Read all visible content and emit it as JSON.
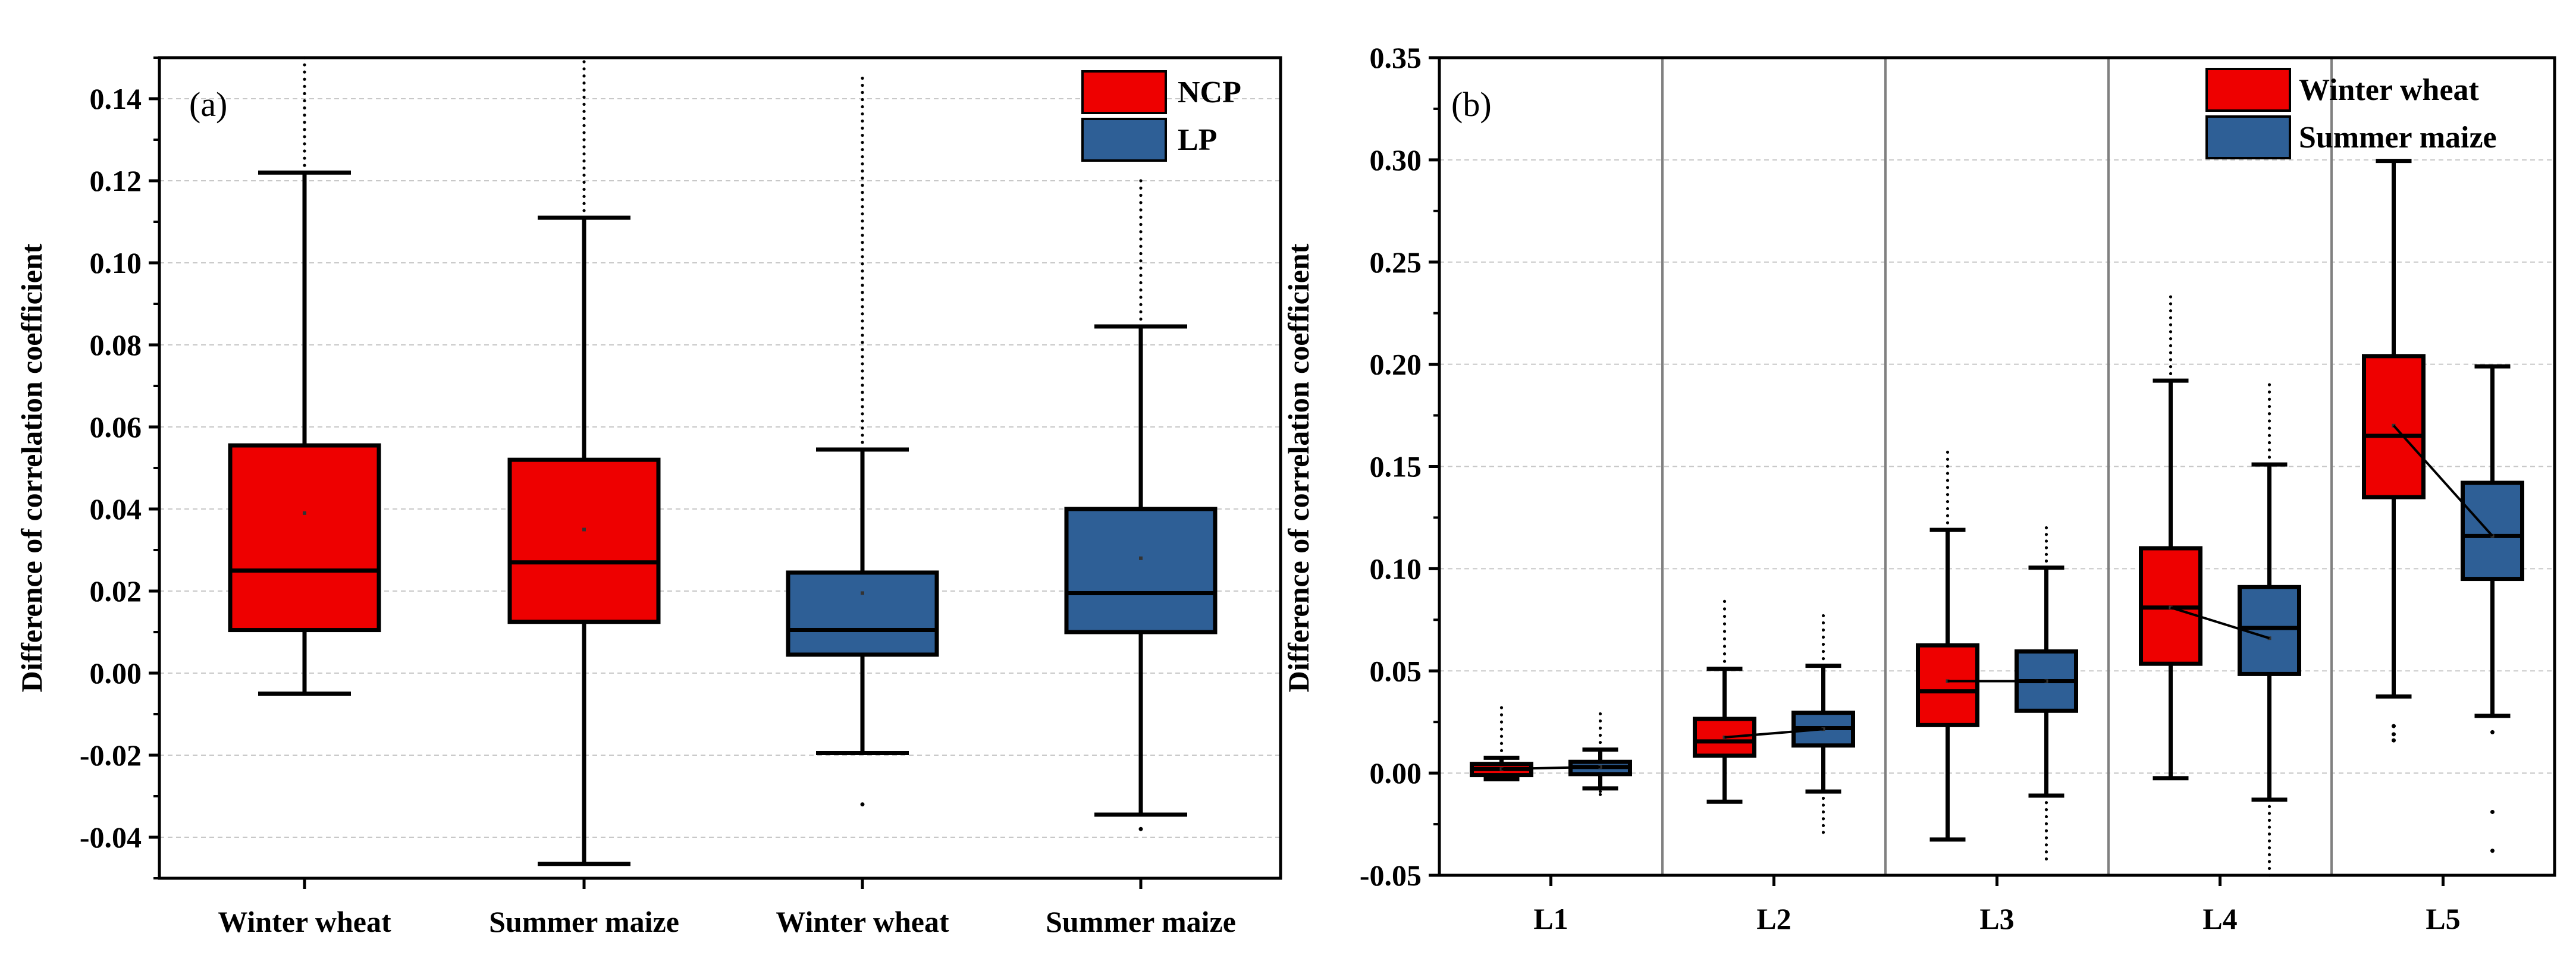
{
  "colors": {
    "red": "#ee0000",
    "blue": "#2e5f96",
    "grid": "#c8c8c8",
    "sep": "#808080"
  },
  "chart_data": [
    {
      "type": "box",
      "panel_label": "(a)",
      "ylabel": "Difference of correlation coefficient",
      "ylim": [
        -0.05,
        0.15
      ],
      "yticks": [
        -0.04,
        -0.02,
        0.0,
        0.02,
        0.04,
        0.06,
        0.08,
        0.1,
        0.12,
        0.14
      ],
      "ytick_labels": [
        "-0.04",
        "-0.02",
        "0.00",
        "0.02",
        "0.04",
        "0.06",
        "0.08",
        "0.10",
        "0.12",
        "0.14"
      ],
      "categories": [
        "Winter wheat",
        "Summer maize",
        "Winter wheat",
        "Summer maize"
      ],
      "legend": [
        {
          "label": "NCP",
          "color": "red"
        },
        {
          "label": "LP",
          "color": "blue"
        }
      ],
      "boxes": [
        {
          "group": "NCP",
          "category": "Winter wheat",
          "color": "red",
          "whisker_low": -0.005,
          "q1": 0.0105,
          "median": 0.025,
          "q3": 0.0555,
          "whisker_high": 0.122,
          "mean": 0.039,
          "outlier_top": 0.15
        },
        {
          "group": "NCP",
          "category": "Summer maize",
          "color": "red",
          "whisker_low": -0.0465,
          "q1": 0.0125,
          "median": 0.027,
          "q3": 0.052,
          "whisker_high": 0.111,
          "mean": 0.035,
          "outlier_top": 0.149
        },
        {
          "group": "LP",
          "category": "Winter wheat",
          "color": "blue",
          "whisker_low": -0.0195,
          "q1": 0.0045,
          "median": 0.0105,
          "q3": 0.0245,
          "whisker_high": 0.0545,
          "mean": 0.0195,
          "outliers": [
            -0.032
          ],
          "outlier_top": 0.145
        },
        {
          "group": "LP",
          "category": "Summer maize",
          "color": "blue",
          "whisker_low": -0.0345,
          "q1": 0.01,
          "median": 0.0195,
          "q3": 0.04,
          "whisker_high": 0.0845,
          "mean": 0.028,
          "outliers": [
            -0.038
          ],
          "outlier_top": 0.12
        }
      ]
    },
    {
      "type": "box",
      "panel_label": "(b)",
      "ylabel": "Difference of correlation coefficient",
      "ylim": [
        -0.05,
        0.35
      ],
      "yticks": [
        -0.05,
        0.0,
        0.05,
        0.1,
        0.15,
        0.2,
        0.25,
        0.3,
        0.35
      ],
      "ytick_labels": [
        "-0.05",
        "0.00",
        "0.05",
        "0.10",
        "0.15",
        "0.20",
        "0.25",
        "0.30",
        "0.35"
      ],
      "categories": [
        "L1",
        "L2",
        "L3",
        "L4",
        "L5"
      ],
      "legend": [
        {
          "label": "Winter wheat",
          "color": "red"
        },
        {
          "label": "Summer maize",
          "color": "blue"
        }
      ],
      "boxes": [
        {
          "category": "L1",
          "crop": "Winter wheat",
          "color": "red",
          "whisker_low": -0.003,
          "q1": -0.001,
          "median": 0.002,
          "q3": 0.0045,
          "whisker_high": 0.0075,
          "mean": 0.002,
          "outlier_top": 0.032
        },
        {
          "category": "L1",
          "crop": "Summer maize",
          "color": "blue",
          "whisker_low": -0.0075,
          "q1": -0.0005,
          "median": 0.003,
          "q3": 0.0055,
          "whisker_high": 0.0115,
          "mean": 0.003,
          "outlier_top": 0.029,
          "outlier_bottom": -0.0105
        },
        {
          "category": "L2",
          "crop": "Winter wheat",
          "color": "red",
          "whisker_low": -0.014,
          "q1": 0.0085,
          "median": 0.0155,
          "q3": 0.0265,
          "whisker_high": 0.051,
          "mean": 0.0175,
          "outlier_top": 0.084
        },
        {
          "category": "L2",
          "crop": "Summer maize",
          "color": "blue",
          "whisker_low": -0.009,
          "q1": 0.0135,
          "median": 0.022,
          "q3": 0.0295,
          "whisker_high": 0.0525,
          "mean": 0.0215,
          "outlier_top": 0.077,
          "outlier_bottom": -0.029
        },
        {
          "category": "L3",
          "crop": "Winter wheat",
          "color": "red",
          "whisker_low": -0.0325,
          "q1": 0.0235,
          "median": 0.04,
          "q3": 0.0625,
          "whisker_high": 0.119,
          "mean": 0.045,
          "outlier_top": 0.157
        },
        {
          "category": "L3",
          "crop": "Summer maize",
          "color": "blue",
          "whisker_low": -0.011,
          "q1": 0.0305,
          "median": 0.045,
          "q3": 0.0595,
          "whisker_high": 0.1005,
          "mean": 0.045,
          "outlier_top": 0.12,
          "outlier_bottom": -0.042
        },
        {
          "category": "L4",
          "crop": "Winter wheat",
          "color": "red",
          "whisker_low": -0.0025,
          "q1": 0.0535,
          "median": 0.081,
          "q3": 0.11,
          "whisker_high": 0.192,
          "mean": 0.081,
          "outlier_top": 0.233
        },
        {
          "category": "L4",
          "crop": "Summer maize",
          "color": "blue",
          "whisker_low": -0.013,
          "q1": 0.0485,
          "median": 0.071,
          "q3": 0.091,
          "whisker_high": 0.151,
          "mean": 0.066,
          "outlier_top": 0.19,
          "outlier_bottom": -0.05
        },
        {
          "category": "L5",
          "crop": "Winter wheat",
          "color": "red",
          "whisker_low": 0.0375,
          "q1": 0.135,
          "median": 0.165,
          "q3": 0.204,
          "whisker_high": 0.2995,
          "mean": 0.17,
          "outliers": [
            0.016,
            0.019,
            0.023
          ]
        },
        {
          "category": "L5",
          "crop": "Summer maize",
          "color": "blue",
          "whisker_low": 0.028,
          "q1": 0.095,
          "median": 0.116,
          "q3": 0.142,
          "whisker_high": 0.199,
          "mean": 0.116,
          "outliers": [
            0.02,
            -0.019,
            -0.038
          ]
        }
      ]
    }
  ]
}
